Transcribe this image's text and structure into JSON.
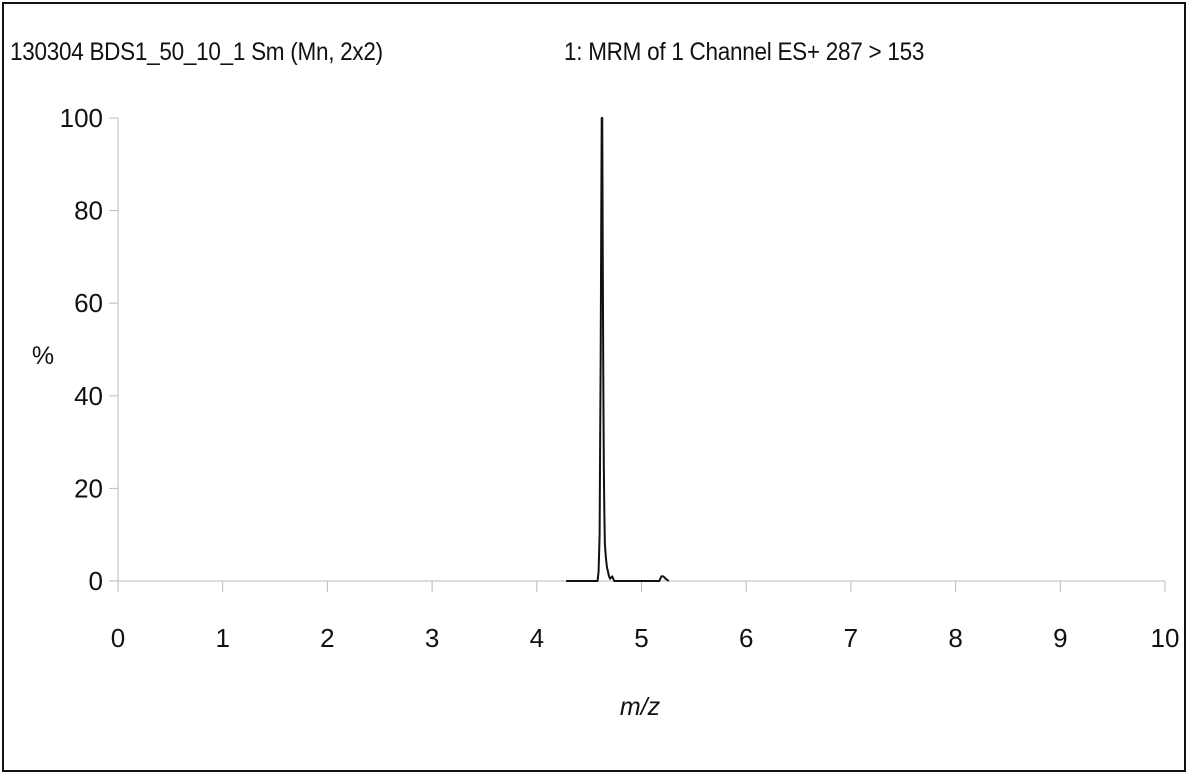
{
  "chart_data": {
    "type": "line",
    "title": "130304 BDS1_50_10_1 Sm (Mn, 2x2)",
    "subtitle": "1: MRM of 1 Channel ES+ 287 > 153",
    "xlabel": "m/z",
    "ylabel": "%",
    "xlim": [
      0,
      10
    ],
    "ylim": [
      0,
      100
    ],
    "xticks": [
      "0",
      "1",
      "2",
      "3",
      "4",
      "5",
      "6",
      "7",
      "8",
      "9",
      "10"
    ],
    "yticks": [
      "0",
      "20",
      "40",
      "60",
      "80",
      "100"
    ],
    "grid": false,
    "legend": "none",
    "series": [
      {
        "color": "#111111",
        "points": [
          [
            4.28,
            0
          ],
          [
            4.55,
            0
          ],
          [
            4.58,
            0
          ],
          [
            4.59,
            2
          ],
          [
            4.6,
            10
          ],
          [
            4.605,
            30
          ],
          [
            4.61,
            48
          ],
          [
            4.615,
            75
          ],
          [
            4.62,
            100
          ],
          [
            4.625,
            100
          ],
          [
            4.63,
            70
          ],
          [
            4.635,
            45
          ],
          [
            4.64,
            25
          ],
          [
            4.645,
            15
          ],
          [
            4.65,
            8
          ],
          [
            4.66,
            5
          ],
          [
            4.67,
            3
          ],
          [
            4.68,
            2
          ],
          [
            4.69,
            1
          ],
          [
            4.7,
            0.5
          ],
          [
            4.72,
            1
          ],
          [
            4.74,
            0
          ],
          [
            5.17,
            0
          ],
          [
            5.19,
            1
          ],
          [
            5.21,
            1
          ],
          [
            5.23,
            0.5
          ],
          [
            5.26,
            0
          ]
        ]
      }
    ]
  }
}
